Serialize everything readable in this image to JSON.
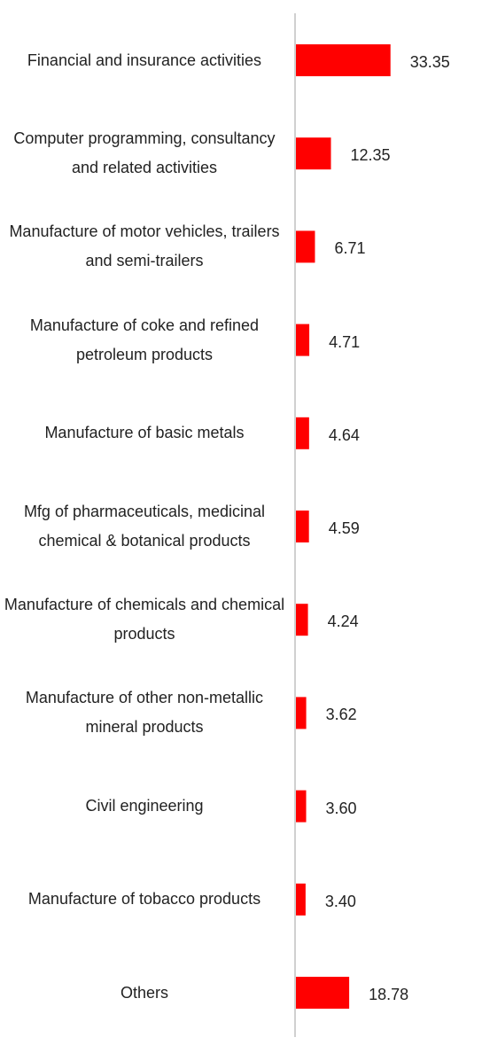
{
  "chart_data": {
    "type": "bar",
    "orientation": "horizontal",
    "categories": [
      "Financial and insurance activities",
      "Computer programming, consultancy and related activities",
      "Manufacture of motor vehicles, trailers and semi-trailers",
      "Manufacture of coke and refined petroleum products",
      "Manufacture of basic metals",
      "Mfg of pharmaceuticals, medicinal chemical & botanical products",
      "Manufacture of chemicals and chemical products",
      "Manufacture of other non-metallic mineral products",
      "Civil engineering",
      "Manufacture of tobacco products",
      "Others"
    ],
    "values": [
      33.35,
      12.35,
      6.71,
      4.71,
      4.64,
      4.59,
      4.24,
      3.62,
      3.6,
      3.4,
      18.78
    ],
    "value_labels": [
      "33.35",
      "12.35",
      "6.71",
      "4.71",
      "4.64",
      "4.59",
      "4.24",
      "3.62",
      "3.60",
      "3.40",
      "18.78"
    ],
    "color": "#ff0000"
  }
}
